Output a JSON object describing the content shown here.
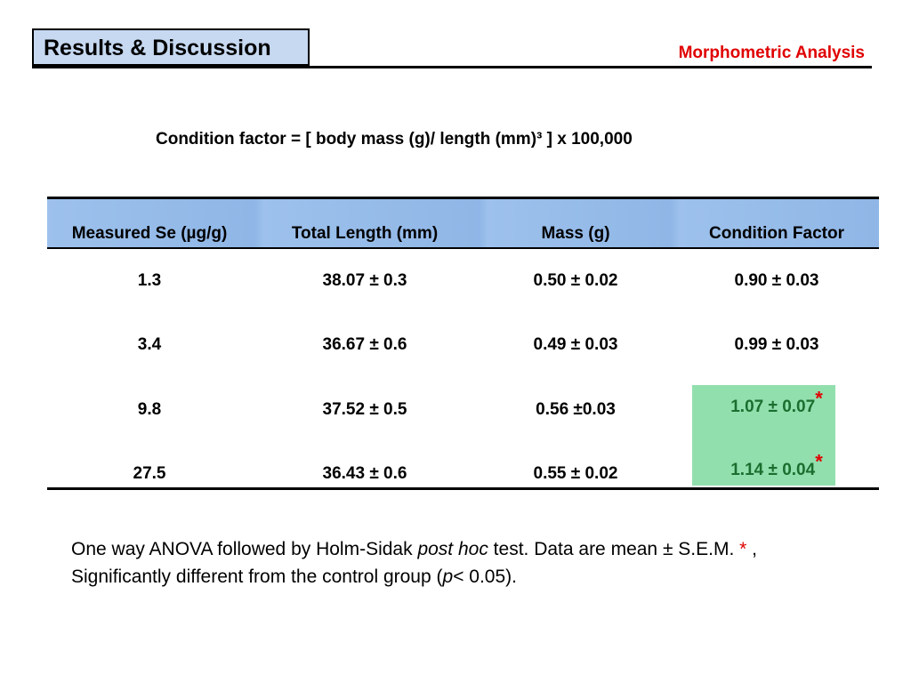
{
  "header": {
    "title": "Results & Discussion",
    "subtitle": "Morphometric Analysis"
  },
  "formula": "Condition factor = [ body mass (g)/ length (mm)³ ] x 100,000",
  "table": {
    "columns": [
      "Measured Se (µg/g)",
      "Total Length (mm)",
      "Mass (g)",
      "Condition Factor"
    ],
    "rows": [
      [
        "1.3",
        "38.07 ± 0.3",
        "0.50 ± 0.02",
        "0.90 ± 0.03"
      ],
      [
        "3.4",
        "36.67 ± 0.6",
        "0.49 ± 0.03",
        "0.99 ± 0.03"
      ],
      [
        "9.8",
        "37.52 ± 0.5",
        "0.56 ±0.03",
        "1.07 ± 0.07"
      ],
      [
        "27.5",
        "36.43 ± 0.6",
        "0.55 ± 0.02",
        "1.14 ± 0.04"
      ]
    ],
    "significance_marker": "*",
    "highlight_color": "#92dfae"
  },
  "footnote": {
    "part1": "One way ANOVA followed by Holm-Sidak ",
    "italic1": "post hoc",
    "part2": " test. Data are mean ± S.E.M. ",
    "star": "*",
    "part3": " , Significantly different from the control group (",
    "italic2": "p",
    "part4": "< 0.05)."
  }
}
